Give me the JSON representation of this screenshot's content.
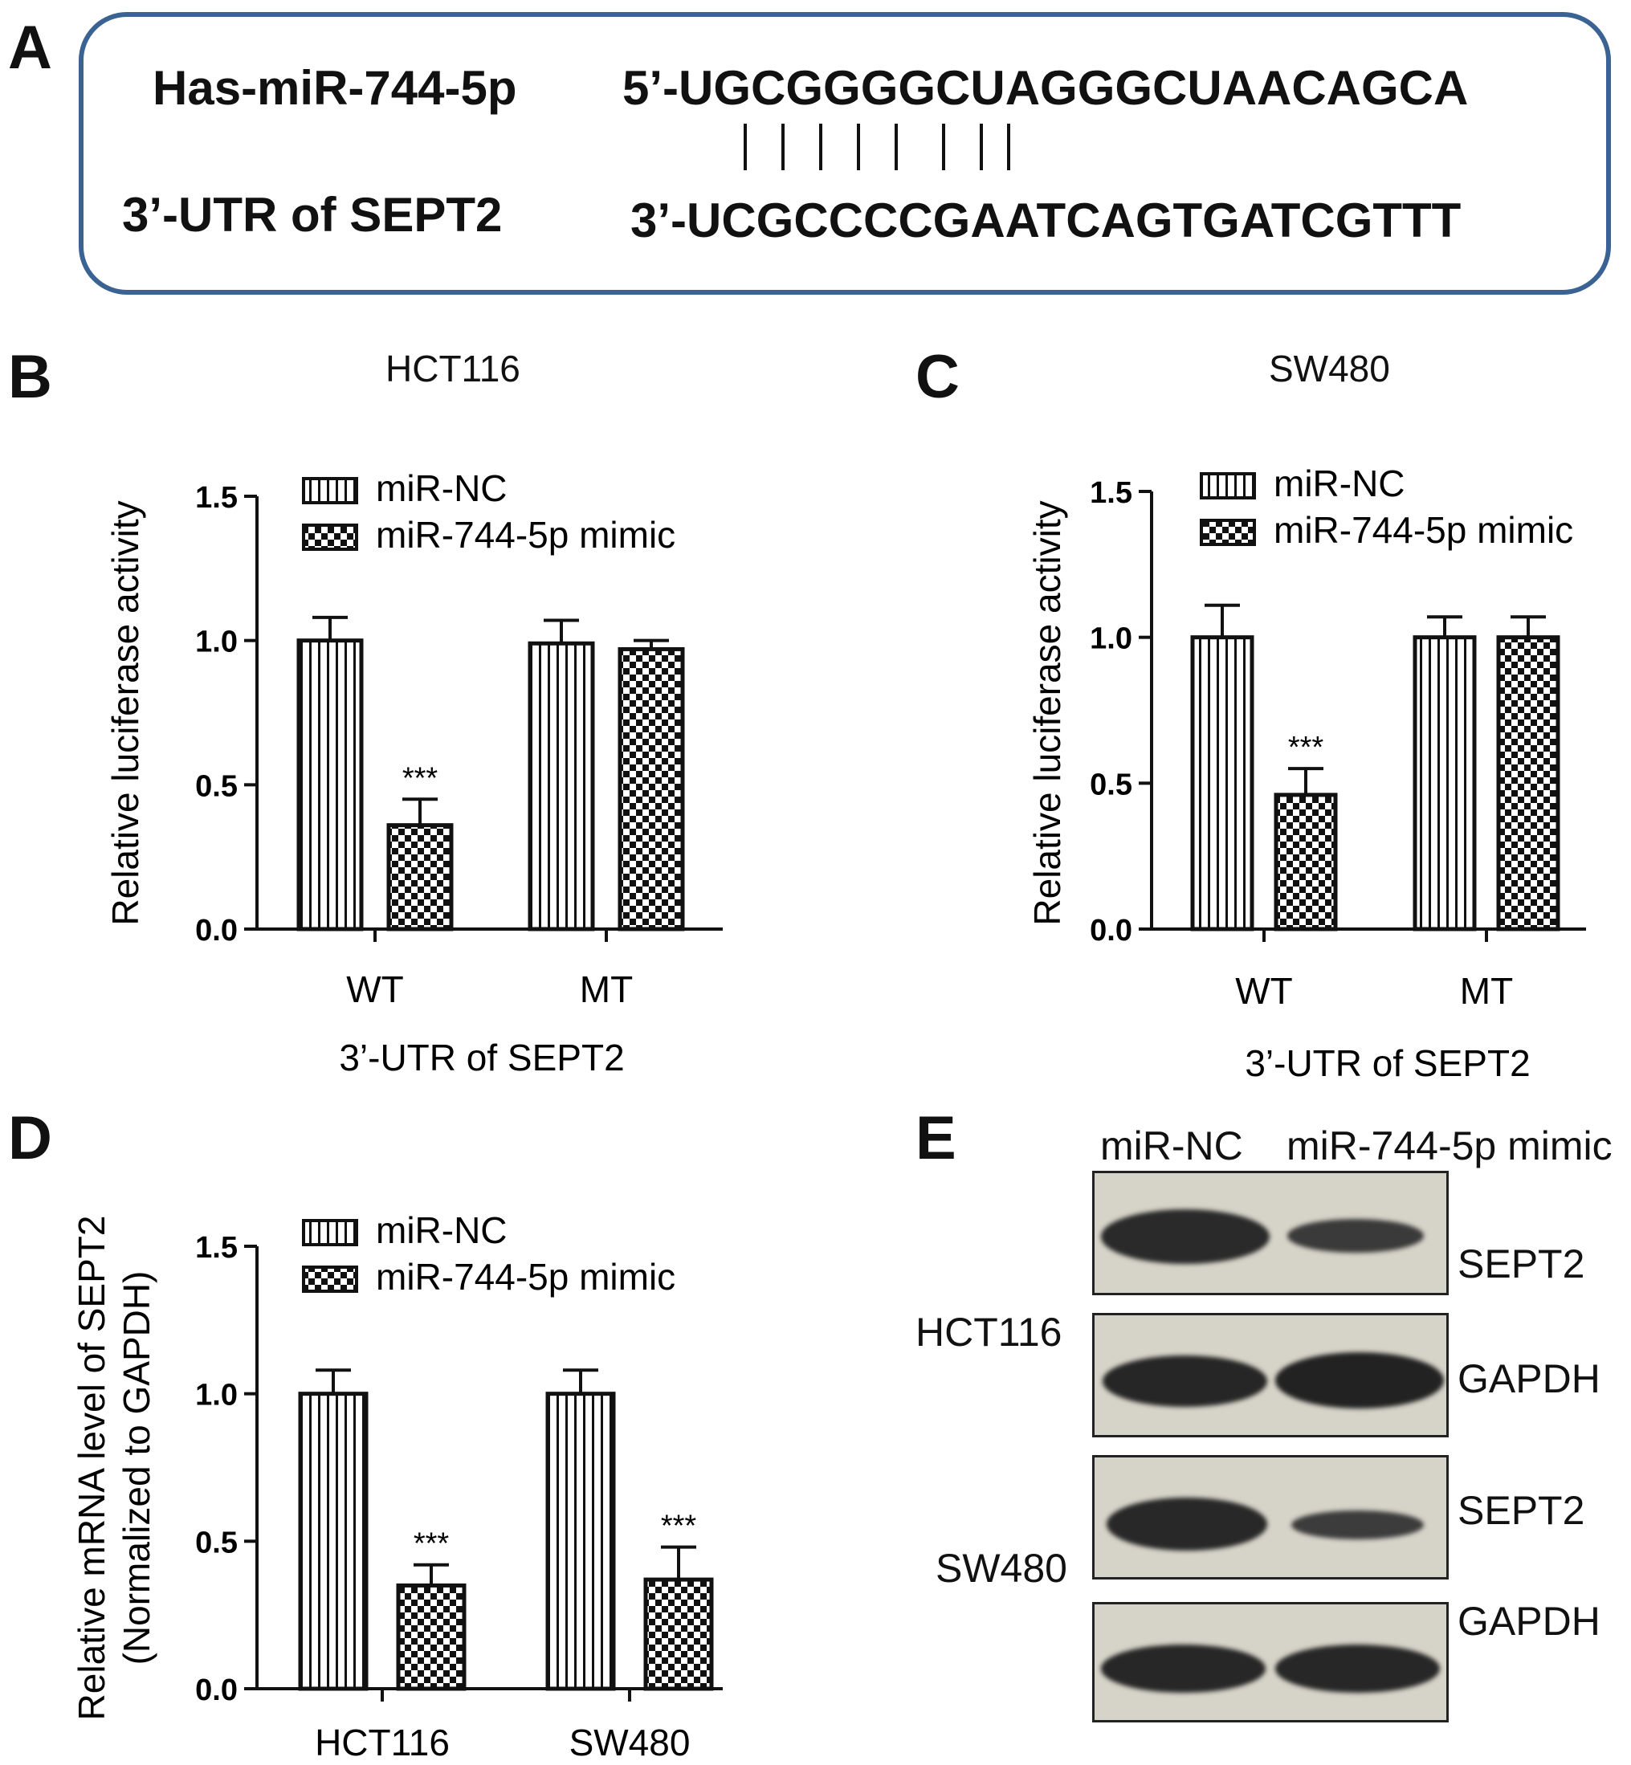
{
  "panel_letters": {
    "a": "A",
    "b": "B",
    "c": "C",
    "d": "D",
    "e": "E"
  },
  "sequence_panel": {
    "mirna_name": "Has-miR-744-5p",
    "mirna_seq": "5’-UGCGGGGCUAGGGCUAACAGCA",
    "target_name": "3’-UTR of SEPT2",
    "target_seq": "3’-UCGCCCCGAATCAGTGATCGTTT",
    "pairing_count": 8
  },
  "chart_data": [
    {
      "id": "B",
      "type": "bar",
      "title": "HCT116",
      "ylabel": "Relative luciferase activity",
      "xlabel": "3’-UTR of SEPT2",
      "categories": [
        "WT",
        "MT"
      ],
      "ylim": [
        0,
        1.5
      ],
      "yticks": [
        "0.0",
        "0.5",
        "1.0",
        "1.5"
      ],
      "legend_position": "top",
      "series": [
        {
          "name": "miR-NC",
          "pattern": "vertical-stripes",
          "values": [
            1.0,
            0.99
          ],
          "errors": [
            0.08,
            0.08
          ]
        },
        {
          "name": "miR-744-5p mimic",
          "pattern": "checker",
          "values": [
            0.36,
            0.97
          ],
          "errors": [
            0.09,
            0.03
          ]
        }
      ],
      "annotations": [
        {
          "category": 0,
          "series": 1,
          "text": "***"
        }
      ]
    },
    {
      "id": "C",
      "type": "bar",
      "title": "SW480",
      "ylabel": "Relative luciferase activity",
      "xlabel": "3’-UTR of SEPT2",
      "categories": [
        "WT",
        "MT"
      ],
      "ylim": [
        0,
        1.5
      ],
      "yticks": [
        "0.0",
        "0.5",
        "1.0",
        "1.5"
      ],
      "legend_position": "top",
      "series": [
        {
          "name": "miR-NC",
          "pattern": "vertical-stripes",
          "values": [
            1.0,
            1.0
          ],
          "errors": [
            0.11,
            0.07
          ]
        },
        {
          "name": "miR-744-5p mimic",
          "pattern": "checker",
          "values": [
            0.46,
            1.0
          ],
          "errors": [
            0.09,
            0.07
          ]
        }
      ],
      "annotations": [
        {
          "category": 0,
          "series": 1,
          "text": "***"
        }
      ]
    },
    {
      "id": "D",
      "type": "bar",
      "title": "",
      "ylabel": "Relative mRNA level of SEPT2",
      "ylabel2": "(Normalized to GAPDH)",
      "xlabel": "",
      "categories": [
        "HCT116",
        "SW480"
      ],
      "ylim": [
        0,
        1.5
      ],
      "yticks": [
        "0.0",
        "0.5",
        "1.0",
        "1.5"
      ],
      "legend_position": "top",
      "series": [
        {
          "name": "miR-NC",
          "pattern": "vertical-stripes",
          "values": [
            1.0,
            1.0
          ],
          "errors": [
            0.08,
            0.08
          ]
        },
        {
          "name": "miR-744-5p mimic",
          "pattern": "checker",
          "values": [
            0.35,
            0.37
          ],
          "errors": [
            0.07,
            0.11
          ]
        }
      ],
      "annotations": [
        {
          "category": 0,
          "series": 1,
          "text": "***"
        },
        {
          "category": 1,
          "series": 1,
          "text": "***"
        }
      ]
    }
  ],
  "western_blot": {
    "lane_headers": [
      "miR-NC",
      "miR-744-5p mimic"
    ],
    "cell_lines": [
      "HCT116",
      "SW480"
    ],
    "rows": [
      {
        "protein": "SEPT2",
        "cell_line": "HCT116"
      },
      {
        "protein": "GAPDH",
        "cell_line": "HCT116"
      },
      {
        "protein": "SEPT2",
        "cell_line": "SW480"
      },
      {
        "protein": "GAPDH",
        "cell_line": "SW480"
      }
    ]
  }
}
